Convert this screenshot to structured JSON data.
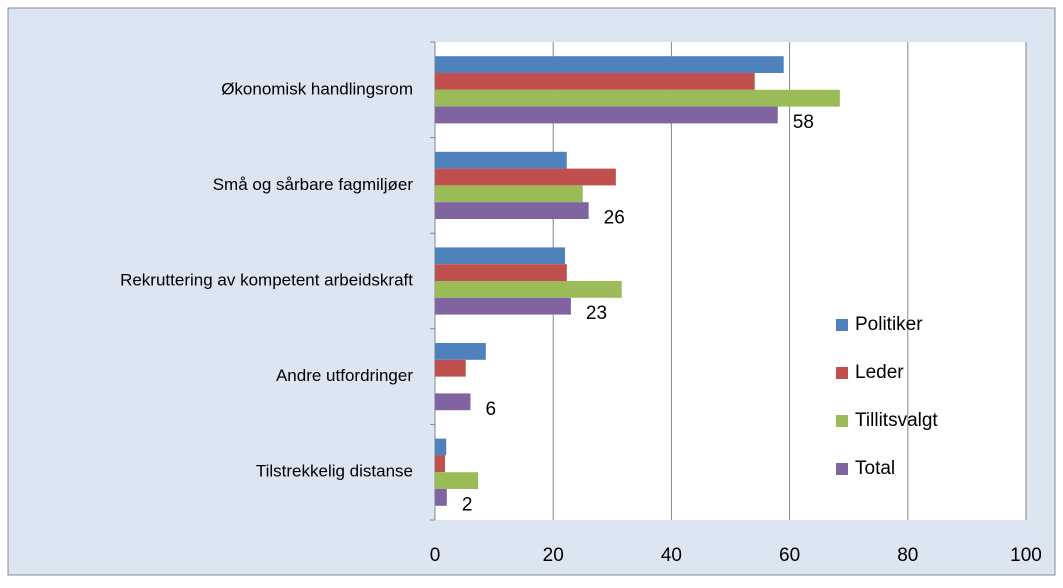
{
  "chart_data": {
    "type": "hbar",
    "categories": [
      "Økonomisk handlingsrom",
      "Små og sårbare fagmiljøer",
      "Rekruttering av kompetent arbeidskraft",
      "Andre utfordringer",
      "Tilstrekkelig distanse"
    ],
    "series": [
      {
        "name": "Politiker",
        "color": "#4f81bd",
        "values": [
          59,
          22.3,
          22,
          8.6,
          1.9
        ]
      },
      {
        "name": "Leder",
        "color": "#c0504d",
        "values": [
          54.1,
          30.6,
          22.3,
          5.2,
          1.7
        ]
      },
      {
        "name": "Tillitsvalgt",
        "color": "#9bbb59",
        "values": [
          68.5,
          25,
          31.6,
          0,
          7.3
        ]
      },
      {
        "name": "Total",
        "color": "#8064a2",
        "values": [
          58,
          26,
          23,
          6,
          2
        ],
        "value_labels": [
          "58",
          "26",
          "23",
          "6",
          "2"
        ]
      }
    ],
    "xlim": [
      0,
      100
    ],
    "xticks": [
      0,
      20,
      40,
      60,
      80,
      100
    ],
    "grid": true,
    "legend": "right"
  }
}
